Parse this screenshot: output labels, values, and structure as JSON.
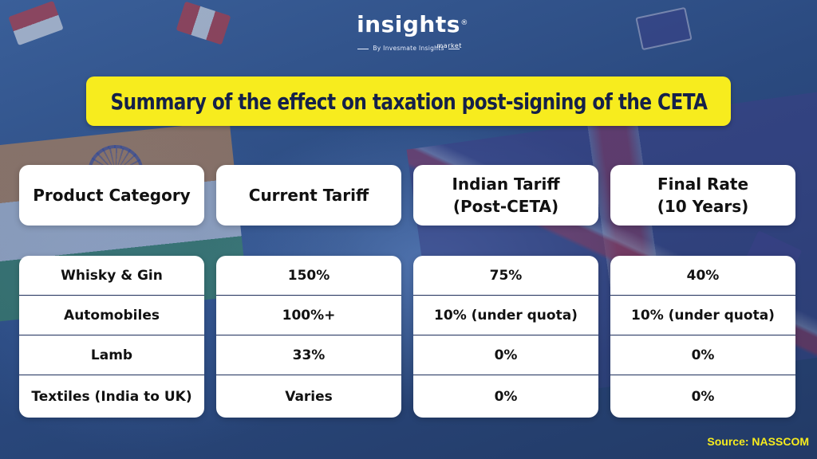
{
  "brand": {
    "logo_word": "insights",
    "logo_sub": "market",
    "logo_reg": "®",
    "byline": "By Invesmate Insights"
  },
  "title": "Summary of the effect on taxation post-signing of the CETA",
  "table": {
    "headers": [
      "Product Category",
      "Current Tariff",
      "Indian Tariff\n(Post-CETA)",
      "Final Rate\n(10 Years)"
    ],
    "columns": [
      [
        "Whisky & Gin",
        "Automobiles",
        "Lamb",
        "Textiles (India to UK)"
      ],
      [
        "150%",
        "100%+",
        "33%",
        "Varies"
      ],
      [
        "75%",
        "10% (under quota)",
        "0%",
        "0%"
      ],
      [
        "40%",
        "10% (under quota)",
        "0%",
        "0%"
      ]
    ]
  },
  "source": "Source: NASSCOM",
  "colors": {
    "banner": "#f7ec1e",
    "title_text": "#14204a",
    "card": "#ffffff",
    "row_divider": "#1d2e5a",
    "source_text": "#f7ec1e"
  }
}
